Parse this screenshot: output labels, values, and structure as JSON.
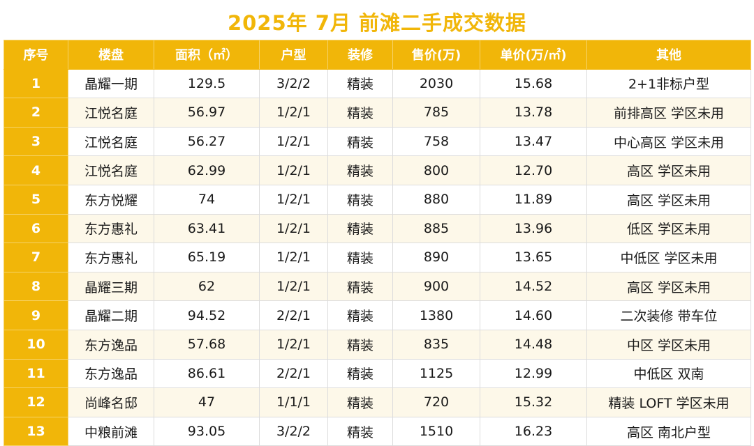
{
  "title": "2025年 7月  前滩二手成交数据",
  "colors": {
    "accent": "#f1b609",
    "stripe": "#fdf8e9"
  },
  "columns": [
    "序号",
    "楼盘",
    "面积（㎡）",
    "户型",
    "装修",
    "售价(万)",
    "单价(万/㎡)",
    "其他"
  ],
  "rows": [
    [
      "1",
      "晶耀一期",
      "129.5",
      "3/2/2",
      "精装",
      "2030",
      "15.68",
      "2+1非标户型"
    ],
    [
      "2",
      "江悦名庭",
      "56.97",
      "1/2/1",
      "精装",
      "785",
      "13.78",
      "前排高区  学区未用"
    ],
    [
      "3",
      "江悦名庭",
      "56.27",
      "1/2/1",
      "精装",
      "758",
      "13.47",
      "中心高区  学区未用"
    ],
    [
      "4",
      "江悦名庭",
      "62.99",
      "1/2/1",
      "精装",
      "800",
      "12.70",
      "高区  学区未用"
    ],
    [
      "5",
      "东方悦耀",
      "74",
      "1/2/1",
      "精装",
      "880",
      "11.89",
      "高区  学区未用"
    ],
    [
      "6",
      "东方惠礼",
      "63.41",
      "1/2/1",
      "精装",
      "885",
      "13.96",
      "低区 学区未用"
    ],
    [
      "7",
      "东方惠礼",
      "65.19",
      "1/2/1",
      "精装",
      "890",
      "13.65",
      "中低区 学区未用"
    ],
    [
      "8",
      "晶耀三期",
      "62",
      "1/2/1",
      "精装",
      "900",
      "14.52",
      "高区 学区未用"
    ],
    [
      "9",
      "晶耀二期",
      "94.52",
      "2/2/1",
      "精装",
      "1380",
      "14.60",
      "二次装修 带车位"
    ],
    [
      "10",
      "东方逸品",
      "57.68",
      "1/2/1",
      "精装",
      "835",
      "14.48",
      "中区 学区未用"
    ],
    [
      "11",
      "东方逸品",
      "86.61",
      "2/2/1",
      "精装",
      "1125",
      "12.99",
      "中低区 双南"
    ],
    [
      "12",
      "尚峰名邸",
      "47",
      "1/1/1",
      "精装",
      "720",
      "15.32",
      "精装 LOFT 学区未用"
    ],
    [
      "13",
      "中粮前滩",
      "93.05",
      "3/2/2",
      "精装",
      "1510",
      "16.23",
      "高区 南北户型"
    ]
  ]
}
